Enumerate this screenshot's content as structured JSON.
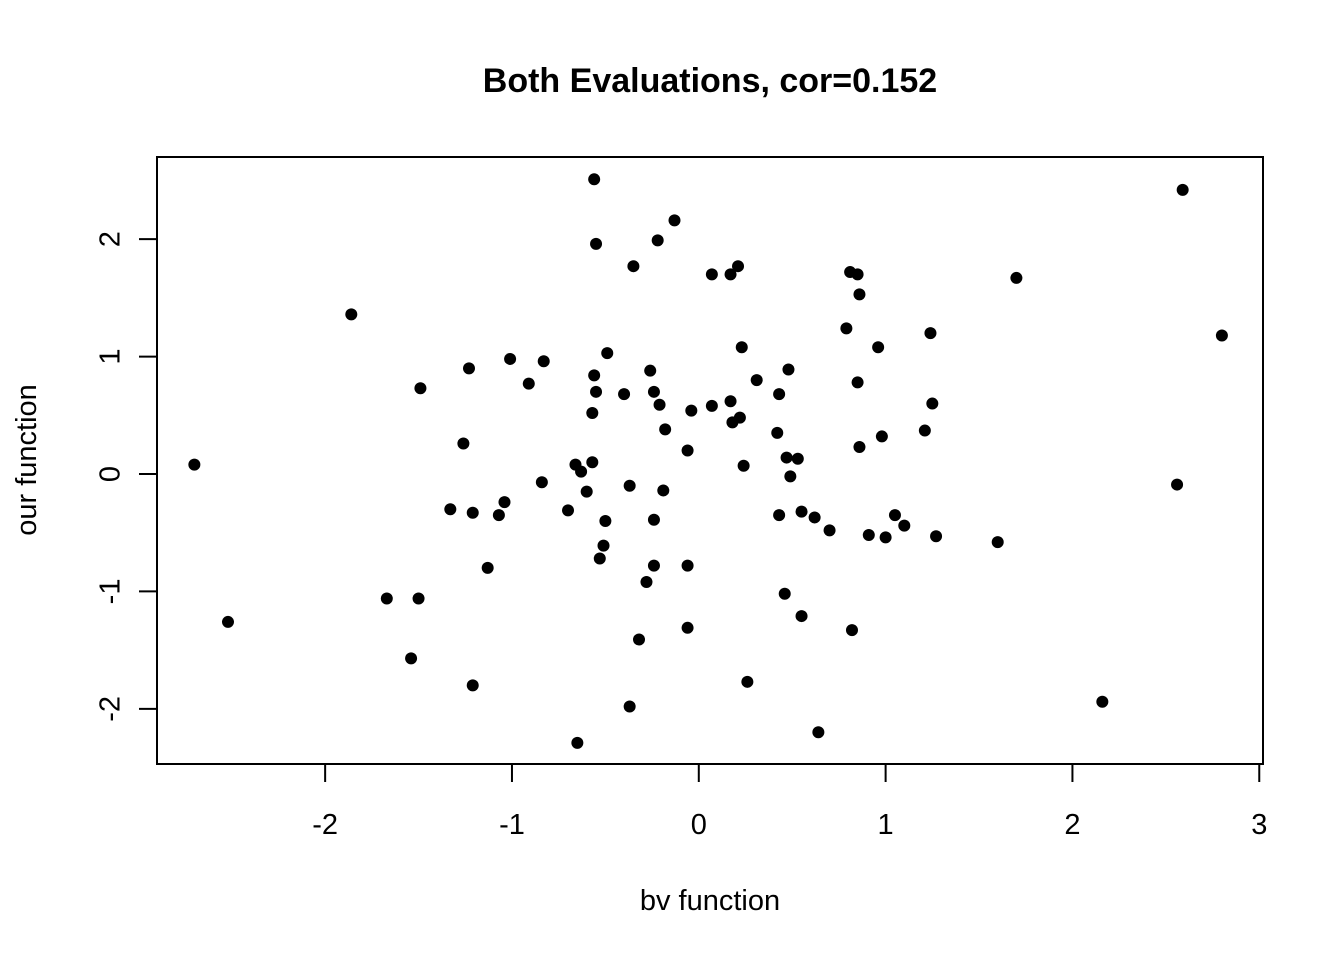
{
  "chart_data": {
    "type": "scatter",
    "title": "Both Evaluations, cor=0.152",
    "xlabel": "bv function",
    "ylabel": "our function",
    "xlim": [
      -2.9,
      3.02
    ],
    "ylim": [
      -2.47,
      2.7
    ],
    "xticks": [
      -2,
      -1,
      0,
      1,
      2,
      3
    ],
    "yticks": [
      -2,
      -1,
      0,
      1,
      2
    ],
    "xtick_labels": [
      "-2",
      "-1",
      "0",
      "1",
      "2",
      "3"
    ],
    "ytick_labels": [
      "-2",
      "-1",
      "0",
      "1",
      "2"
    ],
    "grid": false,
    "color": "#000000",
    "points": [
      {
        "x": -0.56,
        "y": 2.51
      },
      {
        "x": 2.59,
        "y": 2.42
      },
      {
        "x": -0.13,
        "y": 2.16
      },
      {
        "x": -0.55,
        "y": 1.96
      },
      {
        "x": -0.22,
        "y": 1.99
      },
      {
        "x": -0.35,
        "y": 1.77
      },
      {
        "x": 0.07,
        "y": 1.7
      },
      {
        "x": 0.17,
        "y": 1.7
      },
      {
        "x": 0.21,
        "y": 1.77
      },
      {
        "x": 0.81,
        "y": 1.72
      },
      {
        "x": 0.85,
        "y": 1.7
      },
      {
        "x": 0.86,
        "y": 1.53
      },
      {
        "x": 1.7,
        "y": 1.67
      },
      {
        "x": -1.86,
        "y": 1.36
      },
      {
        "x": 0.79,
        "y": 1.24
      },
      {
        "x": 1.24,
        "y": 1.2
      },
      {
        "x": 2.8,
        "y": 1.18
      },
      {
        "x": 0.23,
        "y": 1.08
      },
      {
        "x": 0.96,
        "y": 1.08
      },
      {
        "x": -0.49,
        "y": 1.03
      },
      {
        "x": -1.01,
        "y": 0.98
      },
      {
        "x": -0.83,
        "y": 0.96
      },
      {
        "x": -1.23,
        "y": 0.9
      },
      {
        "x": -0.26,
        "y": 0.88
      },
      {
        "x": 0.48,
        "y": 0.89
      },
      {
        "x": -0.56,
        "y": 0.84
      },
      {
        "x": -0.91,
        "y": 0.77
      },
      {
        "x": 0.31,
        "y": 0.8
      },
      {
        "x": 0.85,
        "y": 0.78
      },
      {
        "x": -1.49,
        "y": 0.73
      },
      {
        "x": -0.55,
        "y": 0.7
      },
      {
        "x": -0.4,
        "y": 0.68
      },
      {
        "x": -0.24,
        "y": 0.7
      },
      {
        "x": 0.43,
        "y": 0.68
      },
      {
        "x": 0.17,
        "y": 0.62
      },
      {
        "x": 0.07,
        "y": 0.58
      },
      {
        "x": -0.21,
        "y": 0.59
      },
      {
        "x": -0.04,
        "y": 0.54
      },
      {
        "x": -0.57,
        "y": 0.52
      },
      {
        "x": 1.25,
        "y": 0.6
      },
      {
        "x": 0.22,
        "y": 0.48
      },
      {
        "x": 0.18,
        "y": 0.44
      },
      {
        "x": -0.18,
        "y": 0.38
      },
      {
        "x": 0.42,
        "y": 0.35
      },
      {
        "x": 1.21,
        "y": 0.37
      },
      {
        "x": 0.98,
        "y": 0.32
      },
      {
        "x": -1.26,
        "y": 0.26
      },
      {
        "x": 0.86,
        "y": 0.23
      },
      {
        "x": -0.06,
        "y": 0.2
      },
      {
        "x": 0.47,
        "y": 0.14
      },
      {
        "x": 0.53,
        "y": 0.13
      },
      {
        "x": -2.7,
        "y": 0.08
      },
      {
        "x": -0.66,
        "y": 0.08
      },
      {
        "x": -0.57,
        "y": 0.1
      },
      {
        "x": 0.24,
        "y": 0.07
      },
      {
        "x": -0.63,
        "y": 0.02
      },
      {
        "x": 0.49,
        "y": -0.02
      },
      {
        "x": -0.84,
        "y": -0.07
      },
      {
        "x": -0.37,
        "y": -0.1
      },
      {
        "x": -0.6,
        "y": -0.15
      },
      {
        "x": -0.19,
        "y": -0.14
      },
      {
        "x": -1.04,
        "y": -0.24
      },
      {
        "x": -1.33,
        "y": -0.3
      },
      {
        "x": -1.21,
        "y": -0.33
      },
      {
        "x": -1.07,
        "y": -0.35
      },
      {
        "x": -0.7,
        "y": -0.31
      },
      {
        "x": -0.5,
        "y": -0.4
      },
      {
        "x": -0.24,
        "y": -0.39
      },
      {
        "x": 0.43,
        "y": -0.35
      },
      {
        "x": 0.55,
        "y": -0.32
      },
      {
        "x": 0.62,
        "y": -0.37
      },
      {
        "x": 0.7,
        "y": -0.48
      },
      {
        "x": 0.91,
        "y": -0.52
      },
      {
        "x": 1.0,
        "y": -0.54
      },
      {
        "x": 1.05,
        "y": -0.35
      },
      {
        "x": 1.1,
        "y": -0.44
      },
      {
        "x": 1.27,
        "y": -0.53
      },
      {
        "x": 1.6,
        "y": -0.58
      },
      {
        "x": 2.56,
        "y": -0.09
      },
      {
        "x": -0.51,
        "y": -0.61
      },
      {
        "x": -0.53,
        "y": -0.72
      },
      {
        "x": -1.13,
        "y": -0.8
      },
      {
        "x": -0.24,
        "y": -0.78
      },
      {
        "x": -0.06,
        "y": -0.78
      },
      {
        "x": -0.28,
        "y": -0.92
      },
      {
        "x": -1.67,
        "y": -1.06
      },
      {
        "x": -1.5,
        "y": -1.06
      },
      {
        "x": 0.46,
        "y": -1.02
      },
      {
        "x": 0.55,
        "y": -1.21
      },
      {
        "x": -2.52,
        "y": -1.26
      },
      {
        "x": -0.06,
        "y": -1.31
      },
      {
        "x": 0.82,
        "y": -1.33
      },
      {
        "x": -0.32,
        "y": -1.41
      },
      {
        "x": -1.54,
        "y": -1.57
      },
      {
        "x": -1.21,
        "y": -1.8
      },
      {
        "x": 0.26,
        "y": -1.77
      },
      {
        "x": -0.37,
        "y": -1.98
      },
      {
        "x": 2.16,
        "y": -1.94
      },
      {
        "x": -0.65,
        "y": -2.29
      },
      {
        "x": 0.64,
        "y": -2.2
      }
    ]
  }
}
